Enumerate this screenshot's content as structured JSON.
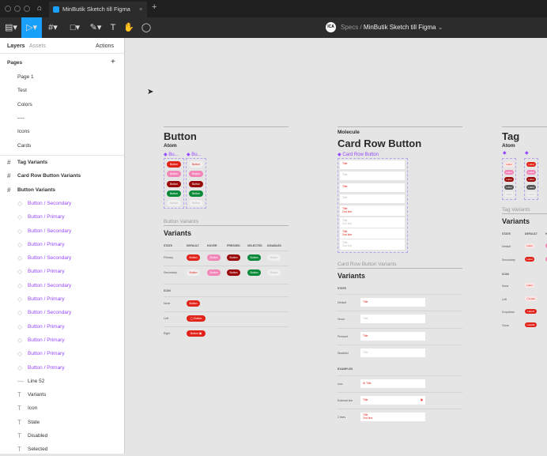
{
  "window": {
    "tab_title": "MinButik Sketch till Figma",
    "close": "×",
    "new_tab": "+"
  },
  "toolbar": {
    "breadcrumb_team": "Specs",
    "breadcrumb_file": "MinButik Sketch till Figma",
    "avatar": "ICA",
    "tools": [
      "main-menu",
      "move",
      "frame",
      "shape",
      "pen",
      "text",
      "hand",
      "comment"
    ],
    "accent": "#18a0fb"
  },
  "sidebar": {
    "tabs": [
      "Layers",
      "Assets"
    ],
    "actions": "Actions",
    "pages_title": "Pages",
    "add": "+",
    "pages": [
      "Page 1",
      "Test",
      "Colors",
      "----",
      "Icons",
      "Cards"
    ],
    "layers": [
      {
        "type": "frame",
        "label": "Tag Variants"
      },
      {
        "type": "frame",
        "label": "Card Row Button Variants"
      },
      {
        "type": "frame",
        "label": "Button Variants"
      },
      {
        "type": "instance",
        "label": "Button / Secondary"
      },
      {
        "type": "instance",
        "label": "Button / Primary"
      },
      {
        "type": "instance",
        "label": "Button / Secondary"
      },
      {
        "type": "instance",
        "label": "Button / Primary"
      },
      {
        "type": "instance",
        "label": "Button / Secondary"
      },
      {
        "type": "instance",
        "label": "Button / Primary"
      },
      {
        "type": "instance",
        "label": "Button / Secondary"
      },
      {
        "type": "instance",
        "label": "Button / Primary"
      },
      {
        "type": "instance",
        "label": "Button / Secondary"
      },
      {
        "type": "instance",
        "label": "Button / Primary"
      },
      {
        "type": "instance",
        "label": "Button / Primary"
      },
      {
        "type": "instance",
        "label": "Button / Primary"
      },
      {
        "type": "instance",
        "label": "Button / Primary"
      },
      {
        "type": "line",
        "label": "Line 52"
      },
      {
        "type": "text",
        "label": "Variants"
      },
      {
        "type": "text",
        "label": "Icon"
      },
      {
        "type": "text",
        "label": "State"
      },
      {
        "type": "text",
        "label": "Disabled"
      },
      {
        "type": "text",
        "label": "Selected"
      }
    ]
  },
  "canvas": {
    "button": {
      "title": "Button",
      "subtitle": "Atom",
      "comp1": "Bu...",
      "comp2": "Bu...",
      "btn": "Button",
      "section": "Button Variants",
      "variants": "Variants",
      "headers": [
        "STATE",
        "DEFAULT",
        "HOVER",
        "PRESSED",
        "SELECTED",
        "DISABLED"
      ],
      "rows": [
        "Primary",
        "Secondary"
      ],
      "icon_header": "ICON",
      "icon_rows": [
        "None",
        "Left",
        "Right"
      ]
    },
    "card": {
      "kicker": "Molecule",
      "title": "Card Row Button",
      "comp": "Card Row Button",
      "row_title": "Title",
      "row_sub": "2nd line",
      "section": "Card Row Button Variants",
      "variants": "Variants",
      "state_header": "STATE",
      "states": [
        "Default",
        "Hover",
        "Pressed",
        "Disabled"
      ],
      "examples_header": "EXAMPLES",
      "examples": [
        "Icon",
        "External link",
        "2 lines"
      ]
    },
    "tag": {
      "title": "Tag",
      "subtitle": "Atom",
      "label": "Label",
      "section": "Tag Variants",
      "variants": "Variants",
      "headers": [
        "STATE",
        "DEFAULT",
        "H"
      ],
      "rows": [
        "Default",
        "Secondary"
      ],
      "icon_header": "ICON",
      "icon_rows": [
        "None",
        "Left",
        "Dropdown",
        "Close"
      ]
    },
    "colors": {
      "red": "#e2231a",
      "pink": "#f386b8",
      "darkred": "#9b0a0a",
      "green": "#0b8a3a",
      "disabled": "#f0f0f0",
      "grey": "#555555",
      "component": "#9747ff"
    }
  }
}
